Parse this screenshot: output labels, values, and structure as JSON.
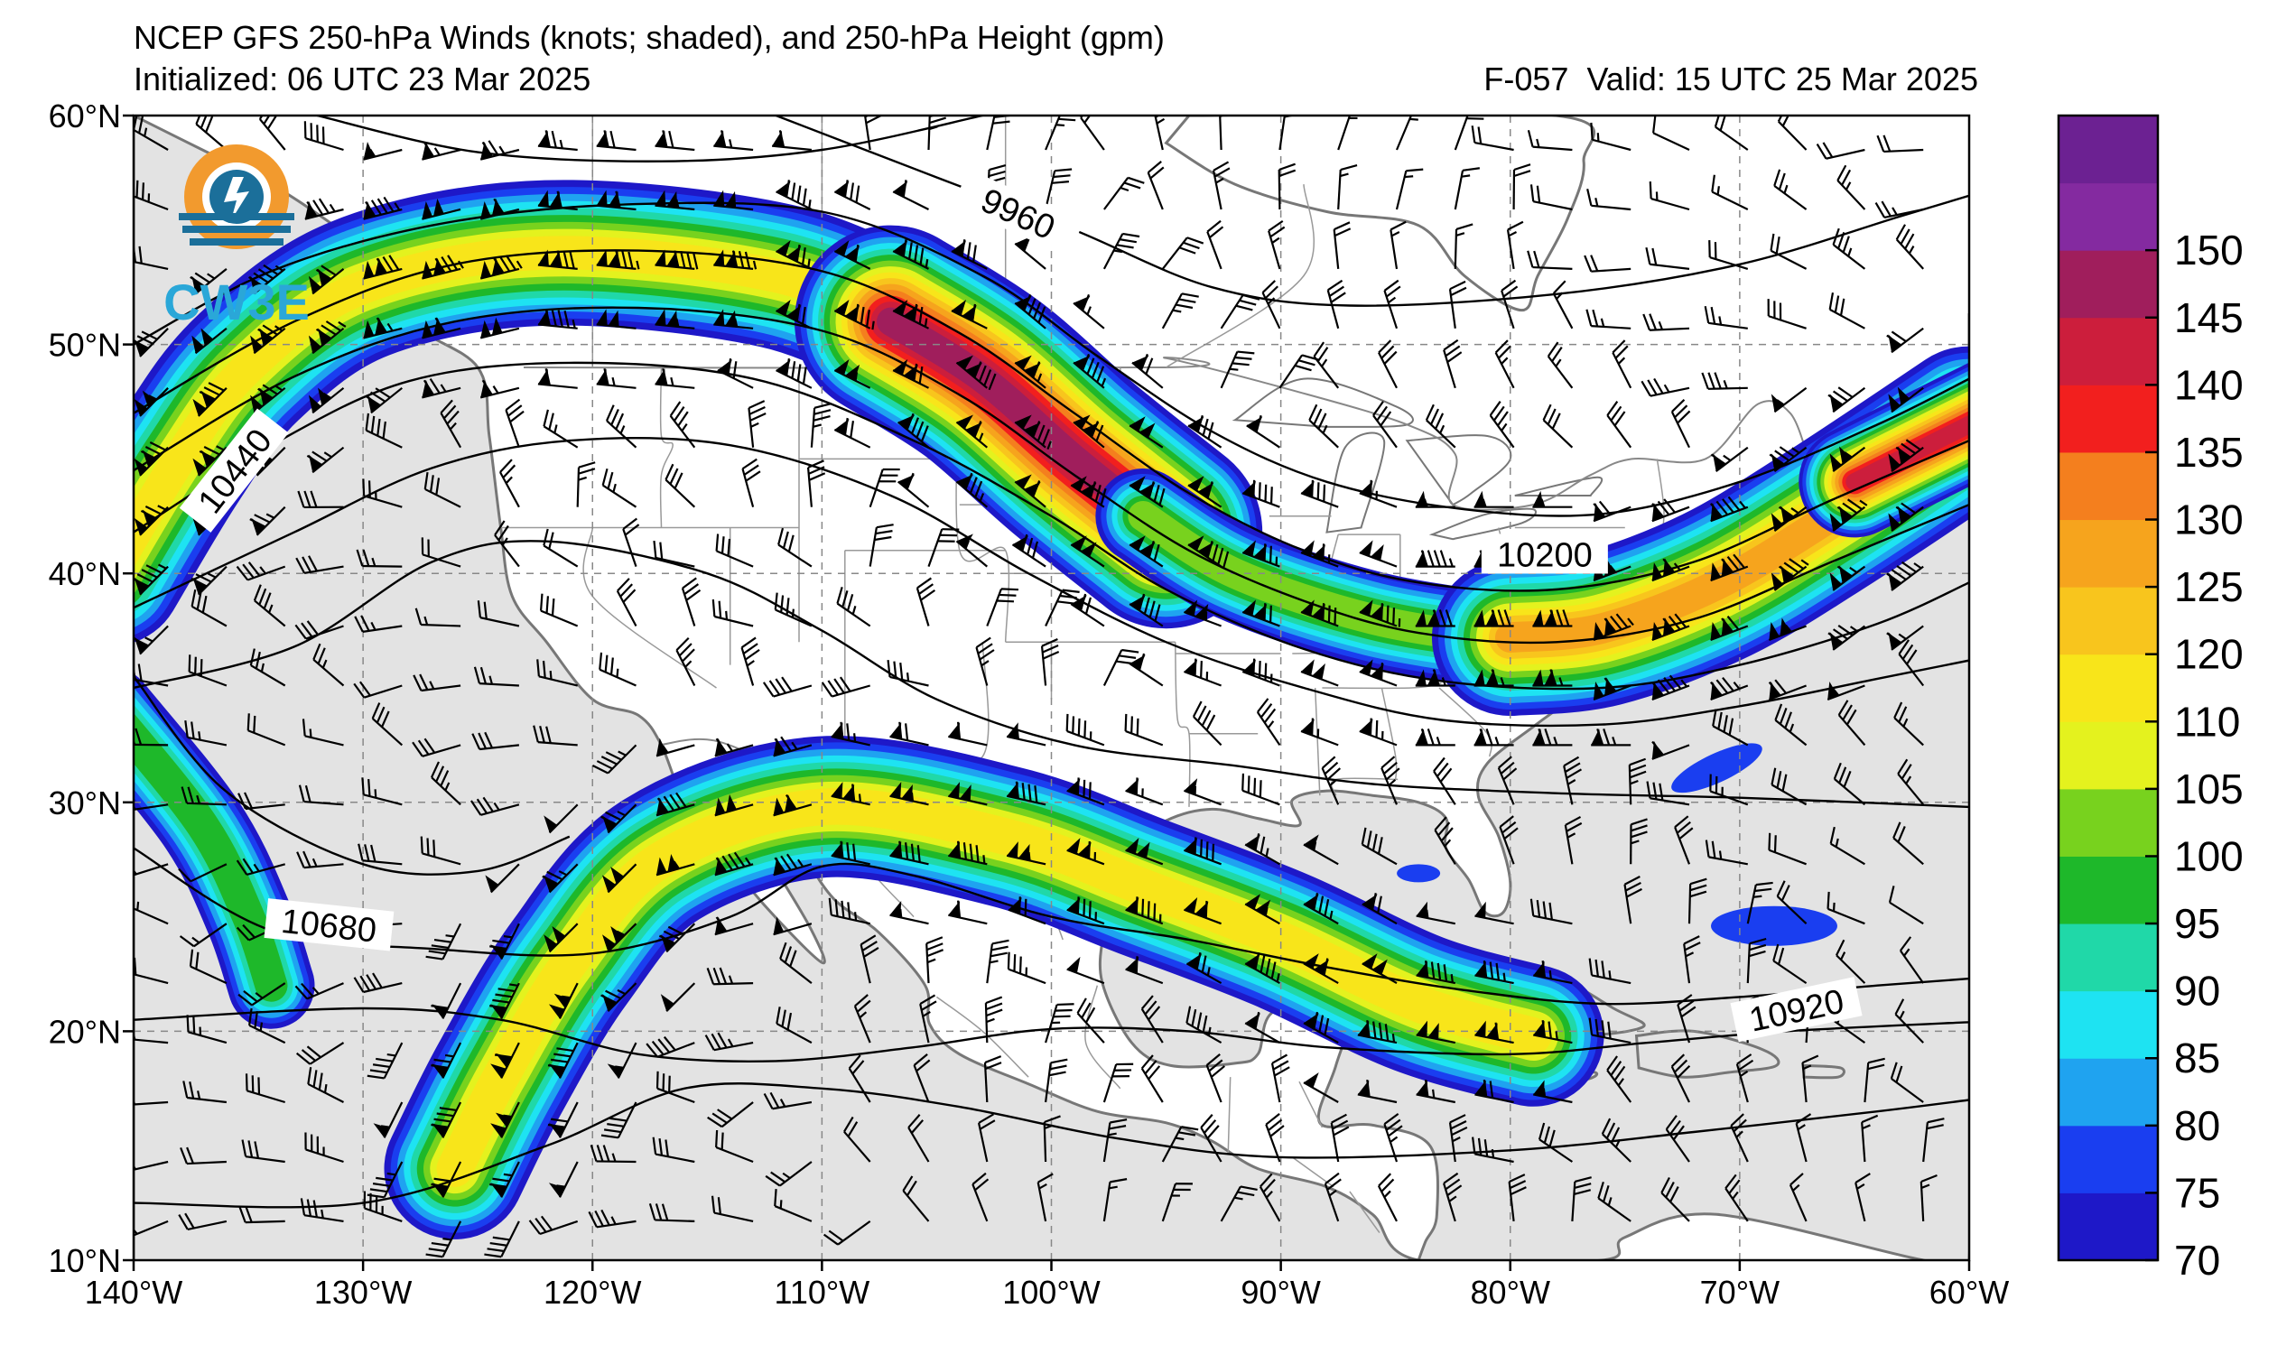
{
  "header": {
    "title": "NCEP GFS 250-hPa Winds (knots; shaded), and 250-hPa Height (gpm)",
    "initialized": "Initialized: 06 UTC 23 Mar 2025",
    "forecast_hour": "F-057",
    "valid": "Valid: 15 UTC 25 Mar 2025"
  },
  "logo": {
    "text": "CW3E"
  },
  "map": {
    "projection": "equirectangular",
    "lon_range": [
      -140,
      -60
    ],
    "lat_range": [
      10,
      60
    ],
    "grid": true,
    "lon_ticks": [
      "140°W",
      "130°W",
      "120°W",
      "110°W",
      "100°W",
      "90°W",
      "80°W",
      "70°W",
      "60°W"
    ],
    "lat_ticks": [
      "10°N",
      "20°N",
      "30°N",
      "40°N",
      "50°N",
      "60°N"
    ],
    "height_contour_labels": [
      "9960",
      "10200",
      "10440",
      "10680",
      "10920"
    ]
  },
  "colorbar": {
    "ticks": [
      "70",
      "75",
      "80",
      "85",
      "90",
      "95",
      "100",
      "105",
      "110",
      "120",
      "125",
      "130",
      "135",
      "140",
      "145",
      "150"
    ],
    "colors": [
      "#1e18c8",
      "#1a3ef0",
      "#1fa3f0",
      "#1ee3f2",
      "#20d8a8",
      "#1eb82a",
      "#78d21e",
      "#e4f21e",
      "#f8e51a",
      "#f8c51d",
      "#f6a41d",
      "#f47f1e",
      "#f21f1e",
      "#cc1e3c",
      "#a01e5c",
      "#842aa0",
      "#6c2192"
    ]
  },
  "chart_data": {
    "type": "map",
    "title": "NCEP GFS 250-hPa Winds (knots; shaded), and 250-hPa Height (gpm)",
    "units": {
      "wind": "knots",
      "height": "gpm"
    },
    "height_contours_gpm": [
      9960,
      10200,
      10440,
      10680,
      10920
    ],
    "jet_streams": [
      {
        "axis_lonlat": [
          [
            -140,
            43
          ],
          [
            -135,
            48
          ],
          [
            -130,
            52
          ],
          [
            -122,
            54
          ],
          [
            -112,
            53
          ],
          [
            -104,
            49
          ],
          [
            -98,
            44
          ],
          [
            -92,
            40
          ],
          [
            -84,
            37
          ],
          [
            -76,
            37
          ],
          [
            -68,
            40
          ],
          [
            -60,
            46
          ]
        ],
        "core_max_knots": 140,
        "core_location": [
          -100,
          46
        ]
      },
      {
        "axis_lonlat": [
          [
            -124,
            17
          ],
          [
            -121,
            23
          ],
          [
            -116,
            28
          ],
          [
            -109,
            30
          ],
          [
            -100,
            28
          ],
          [
            -92,
            25
          ],
          [
            -85,
            21
          ],
          [
            -80,
            20
          ]
        ],
        "core_max_knots": 115
      }
    ],
    "shading_range_knots": [
      70,
      155
    ]
  }
}
